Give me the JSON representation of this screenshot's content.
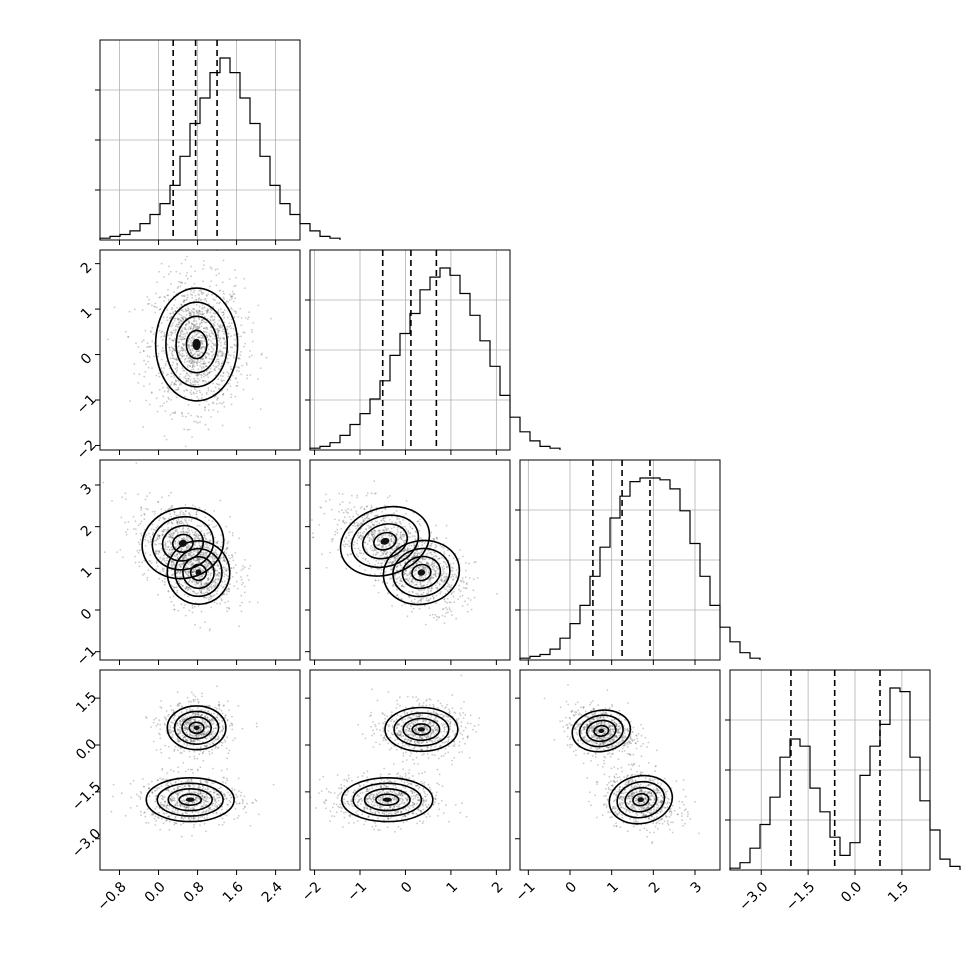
{
  "chart_data": {
    "type": "corner",
    "title": "",
    "n_params": 4,
    "colors": {
      "line": "#000000",
      "grid": "#b0b0b0",
      "points": "#555555"
    },
    "axes": [
      {
        "range": [
          -1.2,
          2.9
        ],
        "ticks": [
          "−0.8",
          "0.0",
          "0.8",
          "1.6",
          "2.4"
        ],
        "tick_values": [
          -0.8,
          0.0,
          0.8,
          1.6,
          2.4
        ]
      },
      {
        "range": [
          -2.1,
          2.3
        ],
        "ticks": [
          "−2",
          "−1",
          "0",
          "1",
          "2"
        ],
        "tick_values": [
          -2,
          -1,
          0,
          1,
          2
        ]
      },
      {
        "range": [
          -1.2,
          3.6
        ],
        "ticks": [
          "−1",
          "0",
          "1",
          "2",
          "3"
        ],
        "tick_values": [
          -1,
          0,
          1,
          2,
          3
        ]
      },
      {
        "range": [
          -4.0,
          2.4
        ],
        "ticks": [
          "−3.0",
          "−1.5",
          "0.0",
          "1.5"
        ],
        "tick_values": [
          -3.0,
          -1.5,
          0.0,
          1.5
        ]
      }
    ],
    "histograms": [
      {
        "param": 0,
        "bin_start": -1.2,
        "bin_width": 0.205,
        "counts": [
          1,
          2,
          3,
          5,
          9,
          14,
          20,
          30,
          46,
          64,
          78,
          92,
          100,
          92,
          78,
          64,
          46,
          30,
          20,
          14,
          9,
          5,
          2,
          1
        ],
        "quantiles": [
          0.3,
          0.76,
          1.2
        ]
      },
      {
        "param": 1,
        "bin_start": -2.1,
        "bin_width": 0.22,
        "counts": [
          1,
          2,
          4,
          8,
          14,
          20,
          28,
          38,
          52,
          64,
          75,
          88,
          95,
          100,
          96,
          86,
          74,
          60,
          46,
          30,
          18,
          10,
          5,
          2,
          1
        ],
        "quantiles": [
          -0.5,
          0.12,
          0.68
        ]
      },
      {
        "param": 2,
        "bin_start": -1.2,
        "bin_width": 0.24,
        "counts": [
          1,
          2,
          3,
          6,
          12,
          20,
          30,
          46,
          62,
          78,
          90,
          98,
          100,
          100,
          99,
          94,
          82,
          64,
          46,
          30,
          18,
          10,
          4,
          1
        ],
        "quantiles": [
          0.55,
          1.25,
          1.92
        ]
      },
      {
        "param": 3,
        "bin_start": -4.0,
        "bin_width": 0.32,
        "counts": [
          1,
          4,
          12,
          25,
          40,
          62,
          72,
          68,
          45,
          32,
          18,
          8,
          15,
          52,
          68,
          80,
          100,
          98,
          62,
          38,
          22,
          6,
          2
        ],
        "quantiles": [
          -2.05,
          -0.65,
          0.8
        ]
      }
    ],
    "pairs": [
      {
        "x_param": 0,
        "y_param": 1,
        "clusters": [
          {
            "cx": 0.78,
            "cy": 0.22,
            "sx": 0.42,
            "sy": 0.62,
            "rho": 0.0,
            "weight": 1
          }
        ]
      },
      {
        "x_param": 0,
        "y_param": 2,
        "clusters": [
          {
            "cx": 0.5,
            "cy": 1.6,
            "sx": 0.42,
            "sy": 0.42,
            "rho": -0.3,
            "weight": 0.55
          },
          {
            "cx": 0.82,
            "cy": 0.9,
            "sx": 0.32,
            "sy": 0.38,
            "rho": -0.2,
            "weight": 0.45
          }
        ]
      },
      {
        "x_param": 1,
        "y_param": 2,
        "clusters": [
          {
            "cx": -0.45,
            "cy": 1.65,
            "sx": 0.5,
            "sy": 0.4,
            "rho": -0.45,
            "weight": 0.5
          },
          {
            "cx": 0.35,
            "cy": 0.9,
            "sx": 0.42,
            "sy": 0.38,
            "rho": -0.3,
            "weight": 0.5
          }
        ]
      },
      {
        "x_param": 0,
        "y_param": 3,
        "clusters": [
          {
            "cx": 0.78,
            "cy": 0.55,
            "sx": 0.3,
            "sy": 0.35,
            "rho": 0.0,
            "weight": 0.5
          },
          {
            "cx": 0.65,
            "cy": -1.75,
            "sx": 0.45,
            "sy": 0.35,
            "rho": 0.0,
            "weight": 0.5
          }
        ]
      },
      {
        "x_param": 1,
        "y_param": 3,
        "clusters": [
          {
            "cx": 0.35,
            "cy": 0.5,
            "sx": 0.4,
            "sy": 0.35,
            "rho": 0.0,
            "weight": 0.5
          },
          {
            "cx": -0.4,
            "cy": -1.75,
            "sx": 0.5,
            "sy": 0.35,
            "rho": 0.0,
            "weight": 0.5
          }
        ]
      },
      {
        "x_param": 2,
        "y_param": 3,
        "clusters": [
          {
            "cx": 0.75,
            "cy": 0.45,
            "sx": 0.35,
            "sy": 0.33,
            "rho": -0.2,
            "weight": 0.5
          },
          {
            "cx": 1.7,
            "cy": -1.75,
            "sx": 0.38,
            "sy": 0.38,
            "rho": -0.25,
            "weight": 0.5
          }
        ]
      }
    ]
  }
}
